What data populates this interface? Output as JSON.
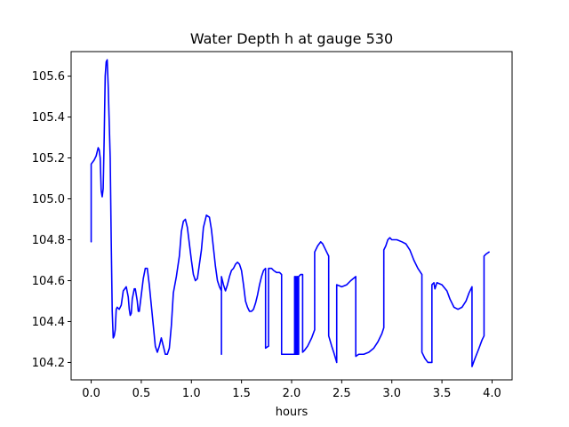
{
  "chart_data": {
    "type": "line",
    "title": "Water Depth h at gauge 530",
    "xlabel": "hours",
    "ylabel": "",
    "xlim": [
      -0.2,
      4.2
    ],
    "ylim": [
      104.115,
      105.72
    ],
    "xticks": [
      0.0,
      0.5,
      1.0,
      1.5,
      2.0,
      2.5,
      3.0,
      3.5,
      4.0
    ],
    "xtick_labels": [
      "0.0",
      "0.5",
      "1.0",
      "1.5",
      "2.0",
      "2.5",
      "3.0",
      "3.5",
      "4.0"
    ],
    "yticks": [
      104.2,
      104.4,
      104.6,
      104.8,
      105.0,
      105.2,
      105.4,
      105.6
    ],
    "ytick_labels": [
      "104.2",
      "104.4",
      "104.6",
      "104.8",
      "105.0",
      "105.2",
      "105.4",
      "105.6"
    ],
    "grid": false,
    "legend": "none",
    "series": [
      {
        "color": "#0000ff",
        "points": [
          [
            0.0,
            104.79
          ],
          [
            0.0,
            105.17
          ],
          [
            0.03,
            105.19
          ],
          [
            0.05,
            105.21
          ],
          [
            0.07,
            105.25
          ],
          [
            0.08,
            105.24
          ],
          [
            0.09,
            105.2
          ],
          [
            0.1,
            105.04
          ],
          [
            0.11,
            105.01
          ],
          [
            0.12,
            105.05
          ],
          [
            0.13,
            105.3
          ],
          [
            0.14,
            105.6
          ],
          [
            0.15,
            105.67
          ],
          [
            0.16,
            105.68
          ],
          [
            0.17,
            105.55
          ],
          [
            0.19,
            105.2
          ],
          [
            0.2,
            104.8
          ],
          [
            0.21,
            104.45
          ],
          [
            0.22,
            104.32
          ],
          [
            0.23,
            104.33
          ],
          [
            0.24,
            104.36
          ],
          [
            0.25,
            104.46
          ],
          [
            0.26,
            104.47
          ],
          [
            0.28,
            104.46
          ],
          [
            0.3,
            104.48
          ],
          [
            0.32,
            104.55
          ],
          [
            0.35,
            104.57
          ],
          [
            0.37,
            104.52
          ],
          [
            0.38,
            104.46
          ],
          [
            0.39,
            104.43
          ],
          [
            0.4,
            104.44
          ],
          [
            0.41,
            104.51
          ],
          [
            0.43,
            104.56
          ],
          [
            0.44,
            104.56
          ],
          [
            0.46,
            104.5
          ],
          [
            0.47,
            104.45
          ],
          [
            0.48,
            104.45
          ],
          [
            0.5,
            104.53
          ],
          [
            0.52,
            104.61
          ],
          [
            0.54,
            104.66
          ],
          [
            0.56,
            104.66
          ],
          [
            0.58,
            104.58
          ],
          [
            0.6,
            104.48
          ],
          [
            0.62,
            104.38
          ],
          [
            0.64,
            104.28
          ],
          [
            0.66,
            104.25
          ],
          [
            0.68,
            104.28
          ],
          [
            0.7,
            104.32
          ],
          [
            0.72,
            104.28
          ],
          [
            0.74,
            104.24
          ],
          [
            0.76,
            104.24
          ],
          [
            0.78,
            104.27
          ],
          [
            0.8,
            104.38
          ],
          [
            0.82,
            104.54
          ],
          [
            0.85,
            104.62
          ],
          [
            0.88,
            104.72
          ],
          [
            0.9,
            104.84
          ],
          [
            0.92,
            104.89
          ],
          [
            0.94,
            104.9
          ],
          [
            0.96,
            104.86
          ],
          [
            0.98,
            104.78
          ],
          [
            1.0,
            104.7
          ],
          [
            1.02,
            104.63
          ],
          [
            1.04,
            104.6
          ],
          [
            1.06,
            104.61
          ],
          [
            1.08,
            104.68
          ],
          [
            1.1,
            104.75
          ],
          [
            1.12,
            104.86
          ],
          [
            1.15,
            104.92
          ],
          [
            1.18,
            104.91
          ],
          [
            1.2,
            104.85
          ],
          [
            1.22,
            104.76
          ],
          [
            1.24,
            104.67
          ],
          [
            1.26,
            104.6
          ],
          [
            1.28,
            104.57
          ],
          [
            1.3,
            104.55
          ],
          [
            1.3,
            104.24
          ],
          [
            1.3,
            104.62
          ],
          [
            1.32,
            104.58
          ],
          [
            1.34,
            104.55
          ],
          [
            1.36,
            104.58
          ],
          [
            1.38,
            104.62
          ],
          [
            1.4,
            104.65
          ],
          [
            1.42,
            104.66
          ],
          [
            1.44,
            104.68
          ],
          [
            1.46,
            104.69
          ],
          [
            1.48,
            104.68
          ],
          [
            1.5,
            104.65
          ],
          [
            1.52,
            104.58
          ],
          [
            1.54,
            104.5
          ],
          [
            1.56,
            104.47
          ],
          [
            1.58,
            104.45
          ],
          [
            1.6,
            104.45
          ],
          [
            1.62,
            104.46
          ],
          [
            1.64,
            104.49
          ],
          [
            1.66,
            104.53
          ],
          [
            1.68,
            104.58
          ],
          [
            1.7,
            104.62
          ],
          [
            1.72,
            104.65
          ],
          [
            1.74,
            104.66
          ],
          [
            1.74,
            104.27
          ],
          [
            1.77,
            104.28
          ],
          [
            1.77,
            104.66
          ],
          [
            1.8,
            104.66
          ],
          [
            1.82,
            104.65
          ],
          [
            1.85,
            104.64
          ],
          [
            1.88,
            104.64
          ],
          [
            1.9,
            104.63
          ],
          [
            1.9,
            104.24
          ],
          [
            1.92,
            104.24
          ],
          [
            1.95,
            104.24
          ],
          [
            2.0,
            104.24
          ],
          [
            2.03,
            104.24
          ],
          [
            2.03,
            104.62
          ],
          [
            2.04,
            104.62
          ],
          [
            2.04,
            104.24
          ],
          [
            2.05,
            104.24
          ],
          [
            2.05,
            104.62
          ],
          [
            2.06,
            104.62
          ],
          [
            2.06,
            104.24
          ],
          [
            2.07,
            104.24
          ],
          [
            2.07,
            104.62
          ],
          [
            2.09,
            104.63
          ],
          [
            2.11,
            104.63
          ],
          [
            2.11,
            104.25
          ],
          [
            2.13,
            104.26
          ],
          [
            2.16,
            104.28
          ],
          [
            2.2,
            104.32
          ],
          [
            2.23,
            104.36
          ],
          [
            2.23,
            104.74
          ],
          [
            2.26,
            104.77
          ],
          [
            2.29,
            104.79
          ],
          [
            2.31,
            104.78
          ],
          [
            2.33,
            104.76
          ],
          [
            2.35,
            104.74
          ],
          [
            2.37,
            104.72
          ],
          [
            2.37,
            104.33
          ],
          [
            2.4,
            104.28
          ],
          [
            2.42,
            104.25
          ],
          [
            2.45,
            104.2
          ],
          [
            2.45,
            104.58
          ],
          [
            2.5,
            104.57
          ],
          [
            2.55,
            104.58
          ],
          [
            2.59,
            104.6
          ],
          [
            2.64,
            104.62
          ],
          [
            2.64,
            104.23
          ],
          [
            2.67,
            104.24
          ],
          [
            2.72,
            104.24
          ],
          [
            2.77,
            104.25
          ],
          [
            2.82,
            104.27
          ],
          [
            2.86,
            104.3
          ],
          [
            2.9,
            104.34
          ],
          [
            2.92,
            104.37
          ],
          [
            2.92,
            104.75
          ],
          [
            2.94,
            104.77
          ],
          [
            2.96,
            104.8
          ],
          [
            2.98,
            104.81
          ],
          [
            3.0,
            104.8
          ],
          [
            3.05,
            104.8
          ],
          [
            3.1,
            104.79
          ],
          [
            3.14,
            104.78
          ],
          [
            3.18,
            104.75
          ],
          [
            3.22,
            104.7
          ],
          [
            3.26,
            104.66
          ],
          [
            3.3,
            104.63
          ],
          [
            3.3,
            104.25
          ],
          [
            3.33,
            104.22
          ],
          [
            3.36,
            104.2
          ],
          [
            3.4,
            104.2
          ],
          [
            3.4,
            104.58
          ],
          [
            3.42,
            104.59
          ],
          [
            3.43,
            104.56
          ],
          [
            3.45,
            104.59
          ],
          [
            3.5,
            104.58
          ],
          [
            3.55,
            104.55
          ],
          [
            3.58,
            104.51
          ],
          [
            3.62,
            104.47
          ],
          [
            3.66,
            104.46
          ],
          [
            3.7,
            104.47
          ],
          [
            3.74,
            104.5
          ],
          [
            3.77,
            104.54
          ],
          [
            3.8,
            104.57
          ],
          [
            3.8,
            104.18
          ],
          [
            3.83,
            104.22
          ],
          [
            3.87,
            104.27
          ],
          [
            3.9,
            104.31
          ],
          [
            3.92,
            104.33
          ],
          [
            3.92,
            104.72
          ],
          [
            3.94,
            104.73
          ],
          [
            3.97,
            104.74
          ]
        ]
      }
    ]
  }
}
